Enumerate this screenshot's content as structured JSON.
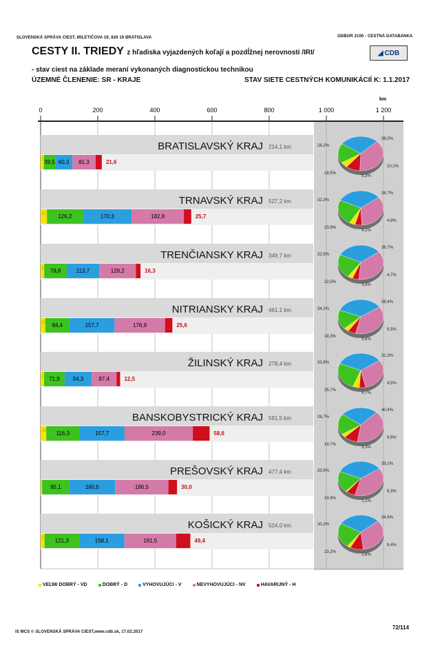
{
  "header": {
    "left_top": "SLOVENSKÁ SPRÁVA CIEST, MILETIČOVA 19, 826 19  BRATISLAVA",
    "right_top": "ODBOR 2100 - CESTNÁ DATABANKA",
    "title_main": "CESTY II. TRIEDY",
    "title_rest": "z hľadiska vyjazdených koľají a pozdĺžnej nerovnosti /IRI/",
    "subtitle": "- stav ciest na základe meraní vykonaných diagnostickou technikou",
    "territorial": "ÚZEMNÉ ČLENENIE: SR - KRAJE",
    "state": "STAV SIETE CESTNÝCH KOMUNIKÁCIÍ K: 1.1.2017",
    "logo_text": "CDB",
    "logo_icon": "cdb-triangle-icon"
  },
  "footer": {
    "left": "IS MCS © SLOVENSKÁ SPRÁVA CIEST,www.cdb.sk, 17.02.2017",
    "page": "72/114"
  },
  "colors": {
    "VD": "#f2e600",
    "D": "#3ec21f",
    "V": "#2b9ee0",
    "NV": "#d47aa8",
    "H": "#d10e1d",
    "band": "#d9d9d9",
    "pie_bg": "#d0d0d0"
  },
  "legend": [
    {
      "key": "VD",
      "label": "VEĽMI DOBRÝ -  VD"
    },
    {
      "key": "D",
      "label": "DOBRÝ - D"
    },
    {
      "key": "V",
      "label": "VYHOVUJÚCI - V"
    },
    {
      "key": "NV",
      "label": "NEVYHOVUJÚCI  -  NV"
    },
    {
      "key": "H",
      "label": "HAVARIJNÝ  -  H"
    }
  ],
  "chart_data": {
    "type": "bar",
    "stacked": true,
    "orientation": "horizontal",
    "xunit": "km",
    "xlim": [
      0,
      1200
    ],
    "xticks": [
      "0",
      "200",
      "400",
      "600",
      "800",
      "1 000",
      "1 200"
    ],
    "xtick_values": [
      0,
      200,
      400,
      600,
      800,
      1000,
      1200
    ],
    "series_keys": [
      "VD",
      "D",
      "V",
      "NV",
      "H"
    ],
    "regions": [
      {
        "name": "BRATISLAVSKÝ KRAJ",
        "total": "214,1 km",
        "values": [
          11.4,
          39.5,
          60.3,
          81.3,
          21.6
        ],
        "labels": [
          "11,4",
          "39,5",
          "60,3",
          "81,3",
          "21,6"
        ],
        "pie": [
          5.3,
          18.5,
          28.2,
          38.0,
          10.1
        ],
        "pie_labels": [
          "5,3%",
          "18,5%",
          "28,2%",
          "38,0%",
          "10,1%"
        ]
      },
      {
        "name": "TRNAVSKÝ KRAJ",
        "total": "527,2 km",
        "values": [
          22.1,
          126.2,
          170.3,
          182.8,
          25.7
        ],
        "labels": [
          "22,1",
          "126,2",
          "170,3",
          "182,8",
          "25,7"
        ],
        "pie": [
          4.2,
          23.9,
          32.3,
          34.7,
          4.9
        ],
        "pie_labels": [
          "4,2%",
          "23,9%",
          "32,3%",
          "34,7%",
          "4,9%"
        ]
      },
      {
        "name": "TRENČIANSKY KRAJ",
        "total": "349,7 km",
        "values": [
          12.6,
          78.8,
          113.7,
          128.2,
          16.3
        ],
        "labels": [
          "12,6",
          "78,8",
          "113,7",
          "128,2",
          "16,3"
        ],
        "pie": [
          3.6,
          22.5,
          32.5,
          36.7,
          4.7
        ],
        "pie_labels": [
          "3,6%",
          "22,5%",
          "32,5%",
          "36,7%",
          "4,7%"
        ]
      },
      {
        "name": "NITRIANSKY KRAJ",
        "total": "461,1 km",
        "values": [
          16.5,
          84.4,
          157.7,
          176.9,
          25.6
        ],
        "labels": [
          "16,5",
          "84,4",
          "157,7",
          "176,9",
          "25,6"
        ],
        "pie": [
          3.6,
          18.3,
          34.2,
          38.4,
          5.5
        ],
        "pie_labels": [
          "3,6%",
          "18,3%",
          "34,2%",
          "38,4%",
          "5,5%"
        ]
      },
      {
        "name": "ŽILINSKÝ KRAJ",
        "total": "278,4 km",
        "values": [
          12.2,
          71.9,
          94.3,
          87.4,
          12.5
        ],
        "labels": [
          "12,2",
          "71,9",
          "94,3",
          "87,4",
          "12,5"
        ],
        "pie": [
          4.7,
          25.7,
          33.8,
          31.3,
          4.5
        ],
        "pie_labels": [
          "4,7%",
          "25,7%",
          "33,8%",
          "31,3%",
          "4,5%"
        ]
      },
      {
        "name": "BANSKOBYSTRICKÝ KRAJ",
        "total": "591,5 km",
        "values": [
          19.8,
          116.3,
          157.7,
          239.0,
          58.6
        ],
        "labels": [
          "19,8",
          "116,3",
          "157,7",
          "239,0",
          "58,6"
        ],
        "pie": [
          3.3,
          19.7,
          26.7,
          40.4,
          9.9
        ],
        "pie_labels": [
          "3,3%",
          "19,7%",
          "26,7%",
          "40,4%",
          "9,9%"
        ]
      },
      {
        "name": "PREŠOVSKÝ KRAJ",
        "total": "477,4 km",
        "values": [
          5.2,
          95.1,
          160.5,
          186.5,
          30.0
        ],
        "labels": [
          "5,2",
          "95,1",
          "160,5",
          "186,5",
          "30,0"
        ],
        "pie": [
          1.1,
          19.9,
          33.6,
          39.1,
          6.3
        ],
        "pie_labels": [
          "1,1%",
          "19,9%",
          "33,6%",
          "39,1%",
          "6,3%"
        ]
      },
      {
        "name": "KOŠICKÝ KRAJ",
        "total": "524,0 km",
        "values": [
          13.6,
          121.3,
          158.1,
          181.5,
          49.4
        ],
        "labels": [
          "13,6",
          "121,3",
          "158,1",
          "181,5",
          "49,4"
        ],
        "pie": [
          2.6,
          23.2,
          30.2,
          34.6,
          9.4
        ],
        "pie_labels": [
          "2,6%",
          "23,2%",
          "30,2%",
          "34,6%",
          "9,4%"
        ]
      }
    ]
  }
}
